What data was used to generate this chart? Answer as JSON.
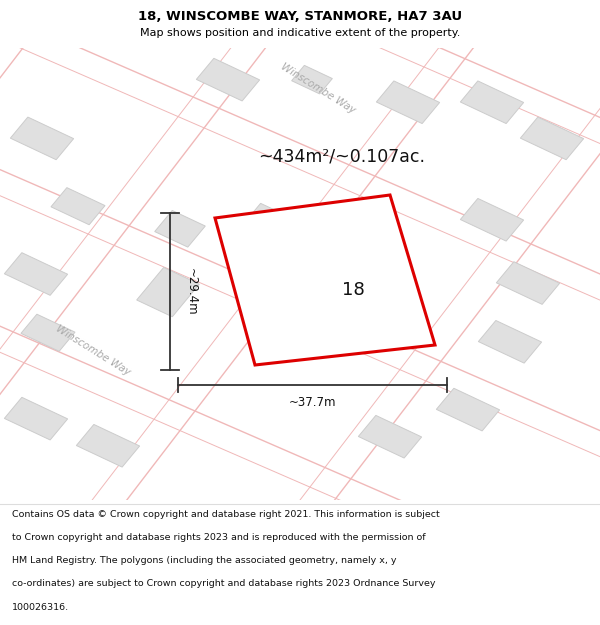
{
  "title_line1": "18, WINSCOMBE WAY, STANMORE, HA7 3AU",
  "title_line2": "Map shows position and indicative extent of the property.",
  "area_text": "~434m²/~0.107ac.",
  "label_number": "18",
  "dim_width": "~37.7m",
  "dim_height": "~29.4m",
  "road_label_top": "Winscombe Way",
  "road_label_left": "Winscombe Way",
  "footer_text": "Contains OS data © Crown copyright and database right 2021. This information is subject to Crown copyright and database rights 2023 and is reproduced with the permission of HM Land Registry. The polygons (including the associated geometry, namely x, y co-ordinates) are subject to Crown copyright and database rights 2023 Ordnance Survey 100026316.",
  "bg_color": "#ffffff",
  "map_bg": "#f7f7f7",
  "plot_color": "#dd0000",
  "plot_fill": "#f8f8f8",
  "building_color": "#e0e0e0",
  "building_edge": "#cccccc",
  "road_line_color": "#f0b8b8",
  "road_fill": "#ffffff",
  "title_color": "#000000",
  "dim_color": "#333333",
  "road_label_color": "#aaaaaa",
  "footer_text_color": "#111111"
}
